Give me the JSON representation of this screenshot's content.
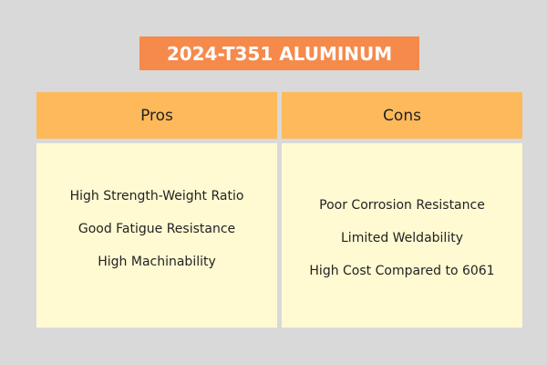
{
  "header": {
    "title": "2024-T351 ALUMINUM"
  },
  "table": {
    "columns": [
      "Pros",
      "Cons"
    ],
    "rows": [
      [
        "High Strength-Weight Ratio",
        "Poor Corrosion Resistance"
      ],
      [
        "Good Fatigue Resistance",
        "Limited Weldability"
      ],
      [
        "High Machinability",
        "High Cost Compared to 6061"
      ]
    ]
  }
}
